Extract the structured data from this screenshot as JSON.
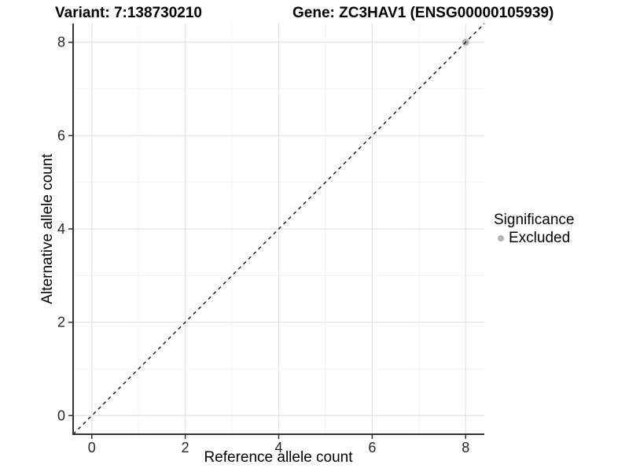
{
  "figure": {
    "background": "#ffffff"
  },
  "chart_data": {
    "type": "scatter",
    "titles": {
      "left": "Variant: 7:138730210",
      "right": "Gene: ZC3HAV1 (ENSG00000105939)"
    },
    "xlabel": "Reference allele count",
    "ylabel": "Alternative allele count",
    "xlim": [
      -0.4,
      8.4
    ],
    "ylim": [
      -0.4,
      8.4
    ],
    "x_ticks": [
      0,
      2,
      4,
      6,
      8
    ],
    "y_ticks": [
      0,
      2,
      4,
      6,
      8
    ],
    "x_minor": [
      1,
      3,
      5,
      7
    ],
    "y_minor": [
      1,
      3,
      5,
      7
    ],
    "grid": true,
    "series": [
      {
        "name": "Excluded",
        "color": "#b3b3b3",
        "marker": "circle",
        "points": [
          [
            8,
            8
          ]
        ]
      }
    ],
    "reference_line": {
      "style": "dashed",
      "equation": "y = x",
      "from": [
        -0.4,
        -0.4
      ],
      "to": [
        8.4,
        8.4
      ],
      "color": "#141414"
    },
    "legend": {
      "title": "Significance",
      "position": "right",
      "entries": [
        {
          "label": "Excluded",
          "color": "#b3b3b3",
          "marker": "circle"
        }
      ]
    },
    "colors": {
      "grid_major": "#e3e3e3",
      "grid_minor": "#f2f2f2",
      "axis_line": "#333333",
      "tick_mark": "#333333",
      "tick_label": "#262626",
      "text": "#000000"
    }
  }
}
